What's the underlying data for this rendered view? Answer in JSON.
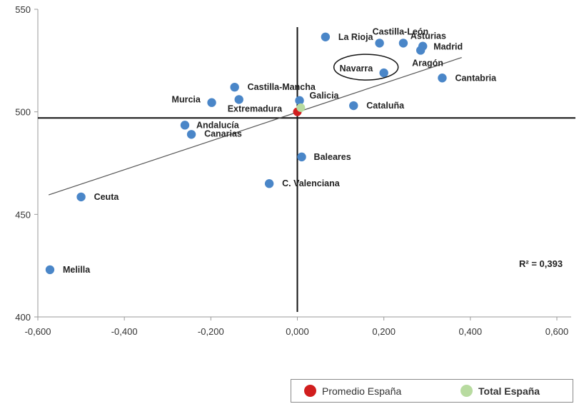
{
  "chart_data": {
    "type": "scatter",
    "xlim": [
      -0.6,
      0.6
    ],
    "ylim": [
      400,
      550
    ],
    "xticks": [
      "-0,600",
      "-0,400",
      "-0,200",
      "0,000",
      "0,200",
      "0,400",
      "0,600"
    ],
    "yticks": [
      "400",
      "450",
      "500",
      "550"
    ],
    "points": [
      {
        "label": "La Rioja",
        "x": 0.065,
        "y": 536.5
      },
      {
        "label": "Castilla-León",
        "x": 0.19,
        "y": 533.5
      },
      {
        "label": "Asturias",
        "x": 0.245,
        "y": 533.5
      },
      {
        "label": "Madrid",
        "x": 0.29,
        "y": 532
      },
      {
        "label": "Aragón",
        "x": 0.285,
        "y": 530
      },
      {
        "label": "Navarra",
        "x": 0.2,
        "y": 519
      },
      {
        "label": "Cantabria",
        "x": 0.335,
        "y": 516.5
      },
      {
        "label": "Castilla-Mancha",
        "x": -0.145,
        "y": 512
      },
      {
        "label": "Extremadura",
        "x": -0.135,
        "y": 506
      },
      {
        "label": "Murcia",
        "x": -0.198,
        "y": 504.5
      },
      {
        "label": "Galicia",
        "x": 0.005,
        "y": 505.5
      },
      {
        "label": "Cataluña",
        "x": 0.13,
        "y": 503
      },
      {
        "label": "Andalucía",
        "x": -0.26,
        "y": 493.5
      },
      {
        "label": "Canarias",
        "x": -0.245,
        "y": 489
      },
      {
        "label": "Baleares",
        "x": 0.01,
        "y": 478
      },
      {
        "label": "C. Valenciana",
        "x": -0.065,
        "y": 465
      },
      {
        "label": "Ceuta",
        "x": -0.5,
        "y": 458.5
      },
      {
        "label": "Melilla",
        "x": -0.572,
        "y": 423
      }
    ],
    "special_points": [
      {
        "name": "Promedio España",
        "x": 0.0,
        "y": 500,
        "color": "#d11e1e"
      },
      {
        "name": "Total España",
        "x": 0.008,
        "y": 502,
        "color": "#b8dba0"
      }
    ],
    "point_color": "#4a86c8",
    "reference_lines": {
      "x": 0.0,
      "y": 497
    },
    "trendline": {
      "x0": -0.575,
      "y0": 459.5,
      "x1": 0.38,
      "y1": 526.5
    },
    "highlight": "Navarra",
    "r_squared": "R² = 0,393",
    "legend": [
      {
        "label": "Promedio España",
        "color": "#d11e1e",
        "bold": false
      },
      {
        "label": "Total España",
        "color": "#b8dba0",
        "bold": true
      }
    ]
  }
}
